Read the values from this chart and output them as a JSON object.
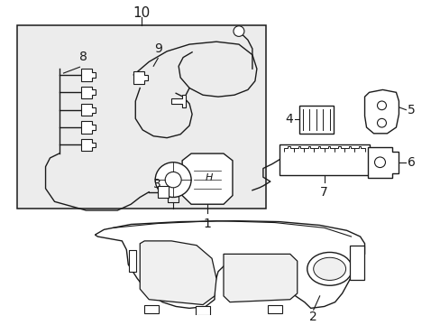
{
  "bg_color": "#ffffff",
  "box_bg": "#ececec",
  "line_color": "#1a1a1a",
  "label_color": "#000000",
  "label_fontsize": 10,
  "figsize": [
    4.89,
    3.6
  ],
  "dpi": 100
}
